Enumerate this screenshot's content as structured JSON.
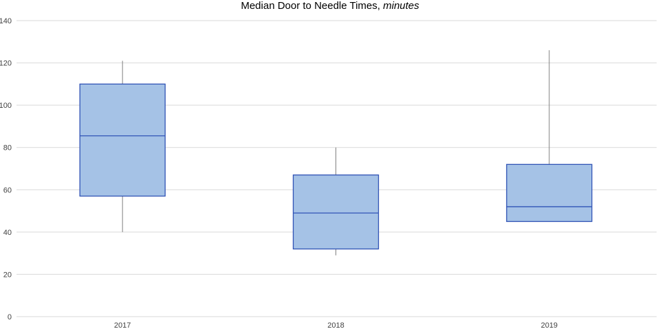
{
  "chart_data": {
    "type": "box",
    "title": "Median Door to Needle Times,",
    "title_italic": "minutes",
    "xlabel": "",
    "ylabel": "",
    "ylim": [
      0,
      140
    ],
    "yticks": [
      0,
      20,
      40,
      60,
      80,
      100,
      120,
      140
    ],
    "ytick_labels": [
      "0",
      "20",
      "40",
      "60",
      "80",
      "100",
      "120",
      "140"
    ],
    "grid": true,
    "categories": [
      "2017",
      "2018",
      "2019"
    ],
    "boxes": [
      {
        "category": "2017",
        "min": 40,
        "q1": 57,
        "median": 85.5,
        "q3": 110,
        "max": 121
      },
      {
        "category": "2018",
        "min": 29,
        "q1": 32,
        "median": 49,
        "q3": 67,
        "max": 80
      },
      {
        "category": "2019",
        "min": 45,
        "q1": 45,
        "median": 52,
        "q3": 72,
        "max": 126
      }
    ],
    "colors": {
      "box_fill": "#a5c2e6",
      "box_stroke": "#2f52b5",
      "whisker": "#7f7f7f",
      "grid": "#d9d9d9"
    }
  }
}
